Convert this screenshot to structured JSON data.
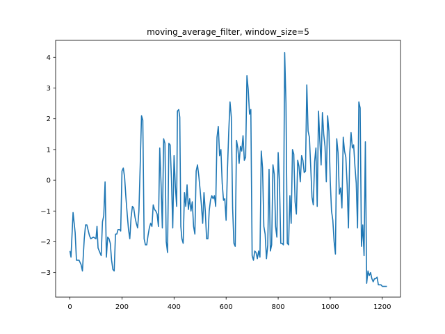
{
  "chart_data": {
    "type": "line",
    "title": "moving_average_filter, window_size=5",
    "xlabel": "",
    "ylabel": "",
    "xlim": [
      -55,
      1270
    ],
    "ylim": [
      -3.8,
      4.55
    ],
    "xticks": [
      0,
      200,
      400,
      600,
      800,
      1000,
      1200
    ],
    "yticks": [
      -3,
      -2,
      -1,
      0,
      1,
      2,
      3,
      4
    ],
    "grid": false,
    "legend": "none",
    "colors": {
      "line": "#1f77b4",
      "axes": "#000000",
      "background": "#ffffff"
    },
    "series": [
      {
        "color": "#1f77b4",
        "points": [
          [
            0,
            -2.3
          ],
          [
            4,
            -2.5
          ],
          [
            12,
            -1.05
          ],
          [
            20,
            -1.7
          ],
          [
            25,
            -2.6
          ],
          [
            35,
            -2.6
          ],
          [
            43,
            -2.75
          ],
          [
            48,
            -2.95
          ],
          [
            55,
            -1.9
          ],
          [
            60,
            -1.45
          ],
          [
            65,
            -1.45
          ],
          [
            75,
            -1.8
          ],
          [
            80,
            -1.9
          ],
          [
            90,
            -1.85
          ],
          [
            100,
            -1.9
          ],
          [
            104,
            -1.5
          ],
          [
            108,
            -2.2
          ],
          [
            115,
            -2.35
          ],
          [
            120,
            -2.45
          ],
          [
            125,
            -1.35
          ],
          [
            130,
            -1.15
          ],
          [
            135,
            -0.05
          ],
          [
            140,
            -2.5
          ],
          [
            145,
            -1.85
          ],
          [
            150,
            -1.9
          ],
          [
            155,
            -2.05
          ],
          [
            160,
            -2.6
          ],
          [
            165,
            -2.9
          ],
          [
            170,
            -2.95
          ],
          [
            175,
            -1.75
          ],
          [
            180,
            -1.75
          ],
          [
            185,
            -1.6
          ],
          [
            190,
            -1.6
          ],
          [
            195,
            -1.65
          ],
          [
            200,
            0.3
          ],
          [
            205,
            0.4
          ],
          [
            210,
            0.1
          ],
          [
            215,
            -0.55
          ],
          [
            220,
            -1.1
          ],
          [
            225,
            -1.6
          ],
          [
            230,
            -1.9
          ],
          [
            235,
            -1.2
          ],
          [
            240,
            -0.85
          ],
          [
            245,
            -0.9
          ],
          [
            250,
            -1.2
          ],
          [
            255,
            -1.4
          ],
          [
            260,
            -1.55
          ],
          [
            265,
            -1.0
          ],
          [
            270,
            0.5
          ],
          [
            275,
            2.1
          ],
          [
            280,
            1.95
          ],
          [
            285,
            -1.9
          ],
          [
            290,
            -2.1
          ],
          [
            295,
            -2.1
          ],
          [
            300,
            -1.8
          ],
          [
            305,
            -1.55
          ],
          [
            310,
            -1.4
          ],
          [
            315,
            -1.5
          ],
          [
            320,
            -0.8
          ],
          [
            325,
            -0.95
          ],
          [
            330,
            -1.0
          ],
          [
            335,
            -1.1
          ],
          [
            340,
            -1.5
          ],
          [
            345,
            1.05
          ],
          [
            350,
            -0.1
          ],
          [
            355,
            -1.55
          ],
          [
            360,
            1.35
          ],
          [
            365,
            1.2
          ],
          [
            370,
            -2.0
          ],
          [
            375,
            -2.35
          ],
          [
            380,
            1.2
          ],
          [
            385,
            1.15
          ],
          [
            390,
            0.05
          ],
          [
            395,
            -1.55
          ],
          [
            400,
            0.8
          ],
          [
            405,
            -0.2
          ],
          [
            410,
            -0.85
          ],
          [
            413,
            2.25
          ],
          [
            418,
            2.3
          ],
          [
            422,
            2.05
          ],
          [
            426,
            -1.5
          ],
          [
            430,
            -1.9
          ],
          [
            435,
            -2.05
          ],
          [
            440,
            -0.4
          ],
          [
            445,
            -0.85
          ],
          [
            450,
            -0.15
          ],
          [
            455,
            -0.95
          ],
          [
            460,
            -0.6
          ],
          [
            465,
            -1.0
          ],
          [
            470,
            -0.7
          ],
          [
            475,
            -1.5
          ],
          [
            480,
            -1.75
          ],
          [
            485,
            0.3
          ],
          [
            490,
            0.5
          ],
          [
            495,
            0.15
          ],
          [
            500,
            -0.3
          ],
          [
            505,
            -0.8
          ],
          [
            510,
            -1.4
          ],
          [
            515,
            -0.4
          ],
          [
            520,
            -1.0
          ],
          [
            525,
            -1.9
          ],
          [
            530,
            -1.9
          ],
          [
            535,
            -1.0
          ],
          [
            540,
            -0.65
          ],
          [
            545,
            -0.5
          ],
          [
            550,
            -0.6
          ],
          [
            555,
            -0.5
          ],
          [
            560,
            -0.85
          ],
          [
            565,
            1.4
          ],
          [
            570,
            1.75
          ],
          [
            575,
            0.8
          ],
          [
            580,
            1.0
          ],
          [
            585,
            -0.1
          ],
          [
            590,
            -0.65
          ],
          [
            595,
            -0.6
          ],
          [
            600,
            -1.3
          ],
          [
            605,
            0.3
          ],
          [
            610,
            1.55
          ],
          [
            615,
            2.55
          ],
          [
            620,
            2.05
          ],
          [
            625,
            -0.9
          ],
          [
            630,
            -2.05
          ],
          [
            635,
            -2.15
          ],
          [
            640,
            1.3
          ],
          [
            645,
            1.05
          ],
          [
            650,
            0.55
          ],
          [
            655,
            1.1
          ],
          [
            660,
            0.95
          ],
          [
            665,
            1.45
          ],
          [
            670,
            0.65
          ],
          [
            675,
            0.75
          ],
          [
            680,
            3.4
          ],
          [
            685,
            2.95
          ],
          [
            690,
            2.15
          ],
          [
            695,
            2.3
          ],
          [
            700,
            -2.45
          ],
          [
            705,
            -2.6
          ],
          [
            710,
            -2.3
          ],
          [
            715,
            -2.35
          ],
          [
            720,
            -2.55
          ],
          [
            725,
            -2.3
          ],
          [
            730,
            -2.5
          ],
          [
            735,
            0.95
          ],
          [
            740,
            0.4
          ],
          [
            745,
            -1.5
          ],
          [
            750,
            -1.75
          ],
          [
            755,
            -2.55
          ],
          [
            760,
            -2.1
          ],
          [
            765,
            0.35
          ],
          [
            770,
            -2.3
          ],
          [
            775,
            -2.1
          ],
          [
            780,
            0.5
          ],
          [
            785,
            0.2
          ],
          [
            790,
            -1.5
          ],
          [
            795,
            -1.85
          ],
          [
            800,
            0.9
          ],
          [
            805,
            -0.05
          ],
          [
            810,
            -2.05
          ],
          [
            815,
            -2.05
          ],
          [
            820,
            -2.1
          ],
          [
            825,
            4.15
          ],
          [
            830,
            2.5
          ],
          [
            835,
            -2.05
          ],
          [
            840,
            -2.1
          ],
          [
            845,
            -0.5
          ],
          [
            850,
            -1.4
          ],
          [
            855,
            1.0
          ],
          [
            860,
            0.85
          ],
          [
            865,
            -0.7
          ],
          [
            870,
            -1.1
          ],
          [
            875,
            0.65
          ],
          [
            880,
            0.45
          ],
          [
            885,
            -0.05
          ],
          [
            890,
            0.8
          ],
          [
            895,
            0.65
          ],
          [
            900,
            0.25
          ],
          [
            905,
            0.3
          ],
          [
            910,
            3.1
          ],
          [
            915,
            1.6
          ],
          [
            920,
            1.4
          ],
          [
            925,
            0.45
          ],
          [
            930,
            -0.55
          ],
          [
            935,
            -0.8
          ],
          [
            940,
            0.6
          ],
          [
            945,
            1.05
          ],
          [
            950,
            -0.85
          ],
          [
            955,
            2.25
          ],
          [
            960,
            1.3
          ],
          [
            965,
            0.5
          ],
          [
            970,
            2.2
          ],
          [
            975,
            1.5
          ],
          [
            980,
            1.1
          ],
          [
            985,
            -0.05
          ],
          [
            990,
            2.1
          ],
          [
            995,
            1.6
          ],
          [
            1000,
            0.0
          ],
          [
            1005,
            -1.0
          ],
          [
            1010,
            -1.3
          ],
          [
            1015,
            -2.0
          ],
          [
            1020,
            -2.4
          ],
          [
            1025,
            1.35
          ],
          [
            1030,
            0.9
          ],
          [
            1035,
            -0.45
          ],
          [
            1040,
            -0.25
          ],
          [
            1045,
            -0.9
          ],
          [
            1050,
            1.4
          ],
          [
            1055,
            0.95
          ],
          [
            1060,
            0.75
          ],
          [
            1065,
            -0.15
          ],
          [
            1070,
            -1.55
          ],
          [
            1075,
            0.85
          ],
          [
            1080,
            1.55
          ],
          [
            1085,
            1.05
          ],
          [
            1090,
            1.15
          ],
          [
            1095,
            0.45
          ],
          [
            1100,
            -0.1
          ],
          [
            1105,
            -1.55
          ],
          [
            1110,
            2.55
          ],
          [
            1115,
            2.35
          ],
          [
            1120,
            -2.15
          ],
          [
            1125,
            -1.45
          ],
          [
            1130,
            -2.45
          ],
          [
            1135,
            1.25
          ],
          [
            1140,
            -3.35
          ],
          [
            1145,
            -2.95
          ],
          [
            1150,
            -3.1
          ],
          [
            1155,
            -3.0
          ],
          [
            1160,
            -3.2
          ],
          [
            1165,
            -3.3
          ],
          [
            1170,
            -3.2
          ],
          [
            1175,
            -3.2
          ],
          [
            1180,
            -3.15
          ],
          [
            1185,
            -3.4
          ],
          [
            1195,
            -3.4
          ],
          [
            1200,
            -3.45
          ],
          [
            1210,
            -3.45
          ],
          [
            1218,
            -3.45
          ]
        ]
      }
    ]
  }
}
